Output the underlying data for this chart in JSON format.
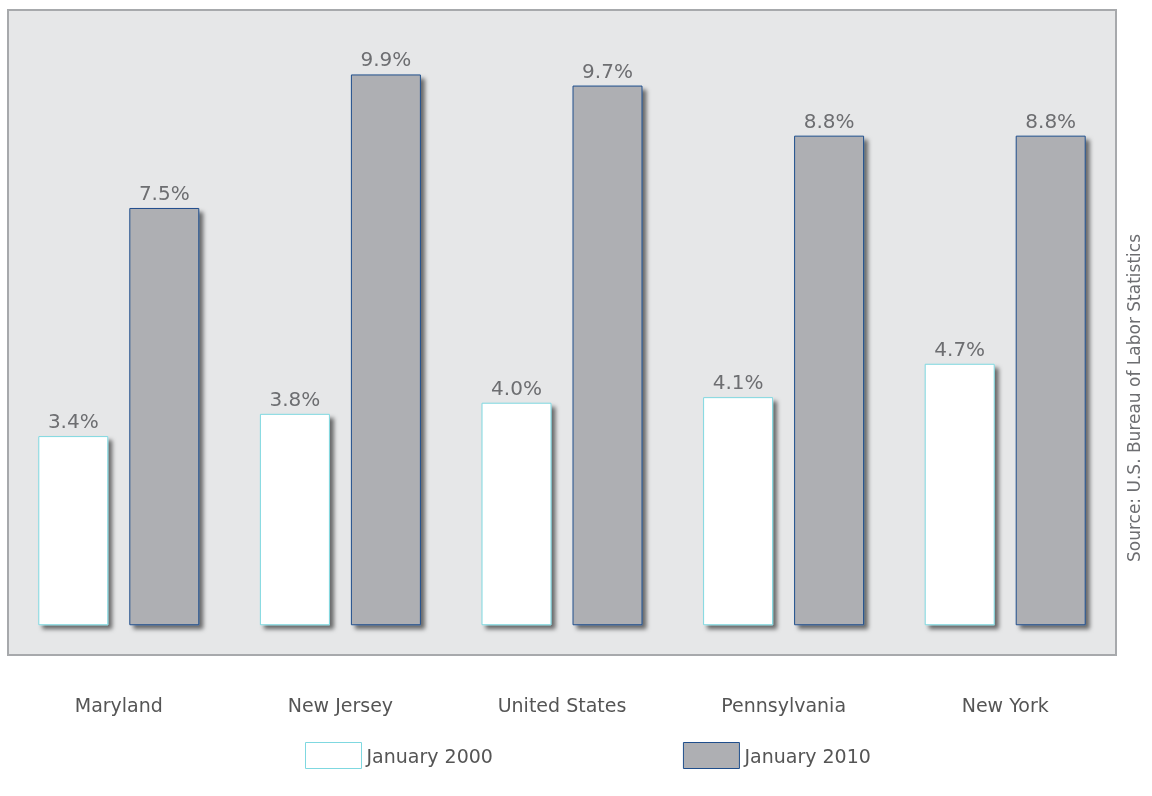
{
  "chart_data": {
    "type": "bar",
    "categories": [
      "Maryland",
      "New Jersey",
      "United States",
      "Pennsylvania",
      "New York"
    ],
    "series": [
      {
        "name": "January 2000",
        "color": "#ffffff",
        "values": [
          3.4,
          3.8,
          4.0,
          4.1,
          4.7
        ],
        "value_labels": [
          "3.4%",
          "3.8%",
          "4.0%",
          "4.1%",
          "4.7%"
        ]
      },
      {
        "name": "January 2010",
        "color": "#aeafb3",
        "values": [
          7.5,
          9.9,
          9.7,
          8.8,
          8.8
        ],
        "value_labels": [
          "7.5%",
          "9.9%",
          "9.7%",
          "8.8%",
          "8.8%"
        ]
      }
    ],
    "annotations": [
      "Source: U.S. Bureau of Labor Statistics"
    ],
    "legend": "bottom",
    "grid": false
  }
}
